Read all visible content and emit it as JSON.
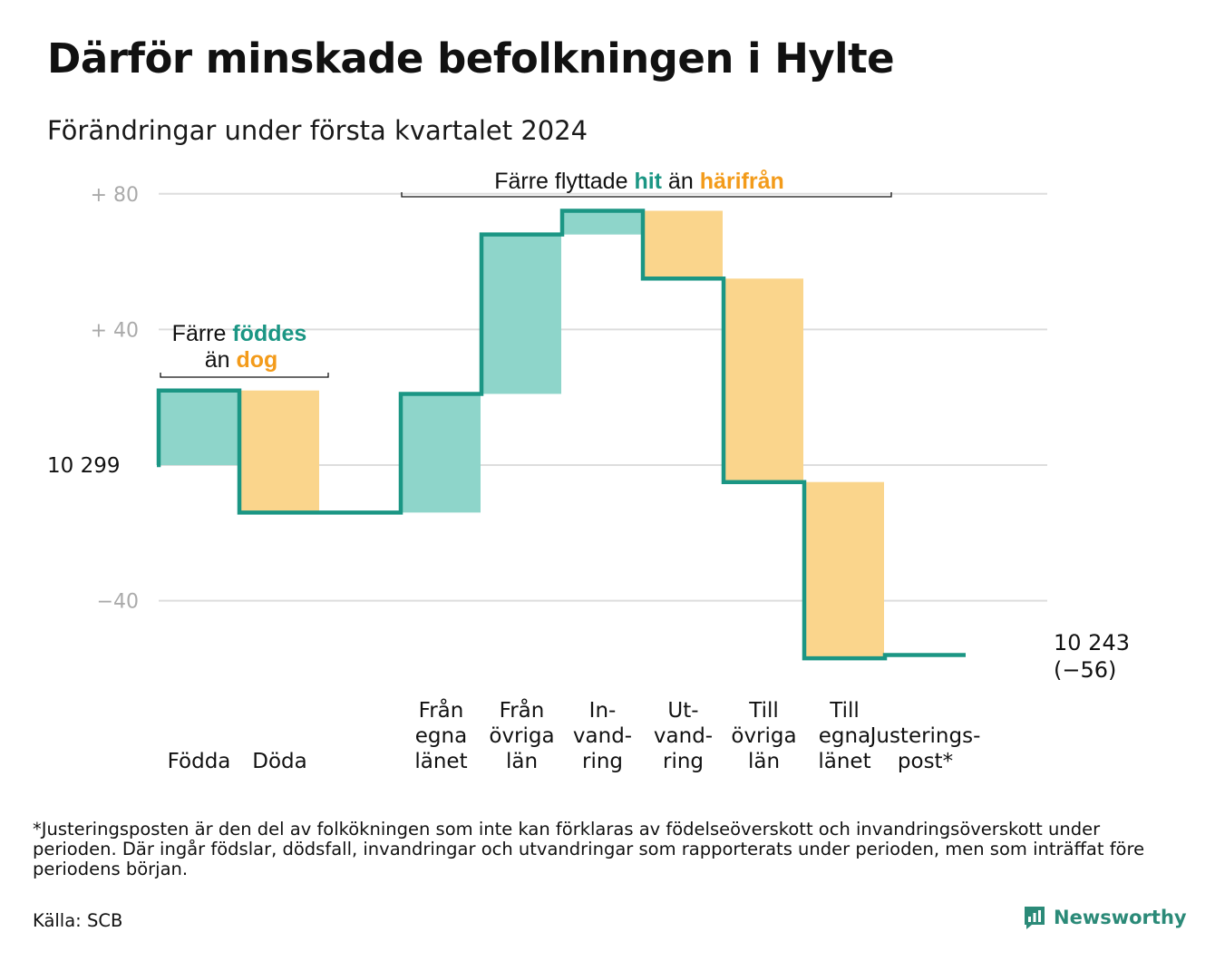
{
  "title": "Därför minskade befolkningen i Hylte",
  "subtitle": "Förändringar under första kvartalet 2024",
  "colors": {
    "line": "#1b9684",
    "increase_fill": "#8ed5ca",
    "decrease_fill": "#fad58c",
    "increase_text": "#1b9684",
    "decrease_text": "#f39b1a",
    "grid": "#dddddd",
    "tick": "#aaaaaa"
  },
  "chart_data": {
    "type": "waterfall",
    "start_label": "10  299",
    "end_label_lines": [
      "10 243",
      "(−56)"
    ],
    "start_value": 0,
    "steps": [
      {
        "label_lines": [
          "Födda"
        ],
        "delta": 22
      },
      {
        "label_lines": [
          "Döda"
        ],
        "delta": -36
      },
      {
        "label_lines": [],
        "delta": 0
      },
      {
        "label_lines": [
          "Från",
          "egna",
          "länet"
        ],
        "delta": 35
      },
      {
        "label_lines": [
          "Från",
          "övriga",
          "län"
        ],
        "delta": 47
      },
      {
        "label_lines": [
          "In-",
          "vand-",
          "ring"
        ],
        "delta": 7
      },
      {
        "label_lines": [
          "Ut-",
          "vand-",
          "ring"
        ],
        "delta": -20
      },
      {
        "label_lines": [
          "Till",
          "övriga",
          "län"
        ],
        "delta": -60
      },
      {
        "label_lines": [
          "Till",
          "egna",
          "länet"
        ],
        "delta": -52
      },
      {
        "label_lines": [
          "Justerings-",
          "post*"
        ],
        "delta": 1
      }
    ],
    "y_ticks": [
      {
        "value": 80,
        "label": "+  80"
      },
      {
        "value": 40,
        "label": "+  40"
      },
      {
        "value": 0,
        "label": ""
      },
      {
        "value": -40,
        "label": "−40"
      }
    ],
    "ylim": [
      -56,
      85
    ],
    "annotations": [
      {
        "parts": [
          "Färre ",
          "föddes"
        ],
        "parts2": [
          "än ",
          "dog"
        ]
      },
      {
        "parts": [
          "Färre flyttade ",
          "hit",
          " än ",
          "härifrån"
        ]
      }
    ]
  },
  "footnote": "*Justeringsposten är den del av folkökningen som inte kan förklaras av födelseöverskott och invandringsöverskott under perioden. Där ingår födslar, dödsfall, invandringar och utvandringar som rapporterats under perioden, men som inträffat före periodens början.",
  "source": "Källa: SCB",
  "brand": "Newsworthy",
  "logo_icon": "bar-chart-speech-bubble-icon"
}
